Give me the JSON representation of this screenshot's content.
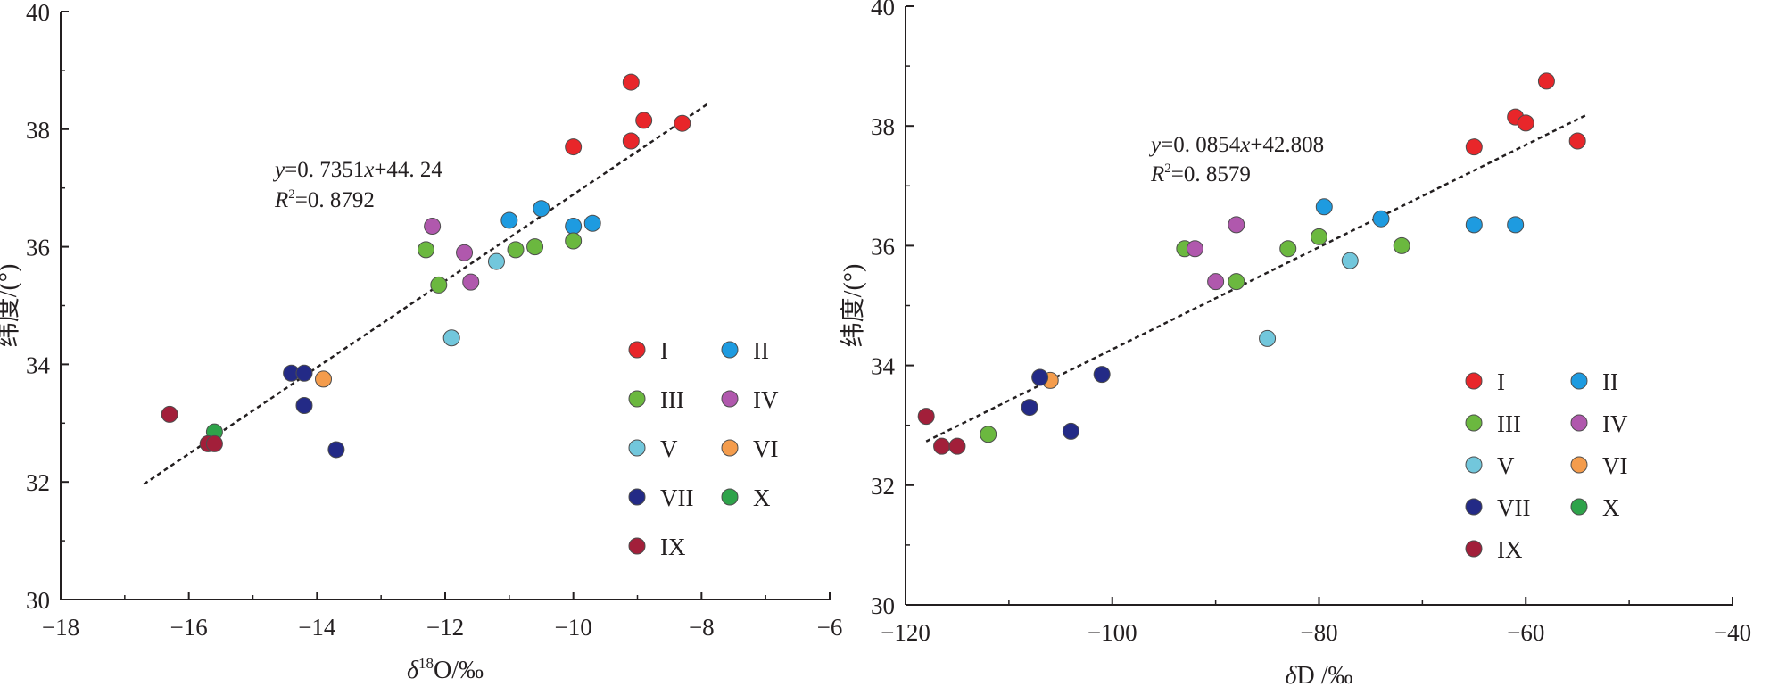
{
  "series_colors": {
    "I": "#e8262a",
    "II": "#1e9be0",
    "III": "#6bb83f",
    "IV": "#b058ad",
    "V": "#72c7dc",
    "VI": "#f49c4c",
    "VII": "#232a86",
    "X": "#2ea34a",
    "IX": "#a21f3a"
  },
  "chart_data": [
    {
      "type": "scatter",
      "xlabel_prefix": "δ",
      "xlabel_sup": "18",
      "xlabel_suffix": "O/‰",
      "ylabel": "纬度/(°)",
      "xlim": [
        -18,
        -6
      ],
      "ylim": [
        30,
        40
      ],
      "x_ticks": [
        "−18",
        "−16",
        "−14",
        "−12",
        "−10",
        "−8",
        "−6"
      ],
      "y_ticks": [
        "30",
        "32",
        "34",
        "36",
        "38",
        "40"
      ],
      "trendline": {
        "eq_y": "y",
        "eq_mid": "=0. 7351",
        "eq_x": "x",
        "eq_tail": "+44. 24",
        "r2_r": "R",
        "r2_sup": "2",
        "r2_tail": "=0. 8792",
        "slope": 0.7351,
        "intercept": 44.24,
        "x_range": [
          -16.7,
          -7.9
        ]
      },
      "legend": [
        "I",
        "II",
        "III",
        "IV",
        "V",
        "VI",
        "VII",
        "X",
        "IX"
      ],
      "series": [
        {
          "name": "I",
          "points": [
            [
              -9.1,
              38.8
            ],
            [
              -8.9,
              38.15
            ],
            [
              -9.1,
              37.8
            ],
            [
              -8.3,
              38.1
            ],
            [
              -10.0,
              37.7
            ]
          ]
        },
        {
          "name": "II",
          "points": [
            [
              -11.0,
              36.45
            ],
            [
              -10.5,
              36.65
            ],
            [
              -10.0,
              36.35
            ],
            [
              -9.7,
              36.4
            ]
          ]
        },
        {
          "name": "III",
          "points": [
            [
              -12.3,
              35.95
            ],
            [
              -12.1,
              35.35
            ],
            [
              -10.9,
              35.95
            ],
            [
              -10.6,
              36.0
            ],
            [
              -10.0,
              36.1
            ]
          ]
        },
        {
          "name": "IV",
          "points": [
            [
              -12.2,
              36.35
            ],
            [
              -11.7,
              35.9
            ],
            [
              -11.6,
              35.4
            ]
          ]
        },
        {
          "name": "V",
          "points": [
            [
              -11.9,
              34.45
            ],
            [
              -11.2,
              35.75
            ]
          ]
        },
        {
          "name": "VI",
          "points": [
            [
              -13.9,
              33.75
            ]
          ]
        },
        {
          "name": "VII",
          "points": [
            [
              -14.4,
              33.85
            ],
            [
              -14.2,
              33.85
            ],
            [
              -14.2,
              33.3
            ],
            [
              -13.7,
              32.55
            ]
          ]
        },
        {
          "name": "X",
          "points": [
            [
              -15.6,
              32.85
            ]
          ]
        },
        {
          "name": "IX",
          "points": [
            [
              -16.3,
              33.15
            ],
            [
              -15.7,
              32.65
            ],
            [
              -15.6,
              32.65
            ]
          ]
        }
      ]
    },
    {
      "type": "scatter",
      "xlabel_prefix": "δ",
      "xlabel_sup": "",
      "xlabel_suffix": "D /‰",
      "ylabel": "纬度/(°)",
      "xlim": [
        -120,
        -40
      ],
      "ylim": [
        30,
        40
      ],
      "x_ticks": [
        "−120",
        "−100",
        "−80",
        "−60",
        "−40"
      ],
      "y_ticks": [
        "30",
        "32",
        "34",
        "36",
        "38",
        "40"
      ],
      "trendline": {
        "eq_y": "y",
        "eq_mid": "=0. 0854",
        "eq_x": "x",
        "eq_tail": "+42.808",
        "r2_r": "R",
        "r2_sup": "2",
        "r2_tail": "=0. 8579",
        "slope": 0.0854,
        "intercept": 42.808,
        "x_range": [
          -118,
          -54
        ]
      },
      "legend": [
        "I",
        "II",
        "III",
        "IV",
        "V",
        "VI",
        "VII",
        "X",
        "IX"
      ],
      "series": [
        {
          "name": "I",
          "points": [
            [
              -58,
              38.75
            ],
            [
              -61,
              38.15
            ],
            [
              -60,
              38.05
            ],
            [
              -55,
              37.75
            ],
            [
              -65,
              37.65
            ]
          ]
        },
        {
          "name": "II",
          "points": [
            [
              -79.5,
              36.65
            ],
            [
              -74,
              36.45
            ],
            [
              -65,
              36.35
            ],
            [
              -61,
              36.35
            ]
          ]
        },
        {
          "name": "III",
          "points": [
            [
              -93,
              35.95
            ],
            [
              -88,
              35.4
            ],
            [
              -83,
              35.95
            ],
            [
              -80,
              36.15
            ],
            [
              -72,
              36.0
            ],
            [
              -112,
              32.85
            ]
          ]
        },
        {
          "name": "IV",
          "points": [
            [
              -92,
              35.95
            ],
            [
              -88,
              36.35
            ],
            [
              -90,
              35.4
            ]
          ]
        },
        {
          "name": "V",
          "points": [
            [
              -77,
              35.75
            ],
            [
              -85,
              34.45
            ]
          ]
        },
        {
          "name": "VI",
          "points": [
            [
              -106,
              33.75
            ]
          ]
        },
        {
          "name": "VII",
          "points": [
            [
              -107,
              33.8
            ],
            [
              -101,
              33.85
            ],
            [
              -108,
              33.3
            ],
            [
              -104,
              32.9
            ]
          ]
        },
        {
          "name": "X",
          "points": []
        },
        {
          "name": "IX",
          "points": [
            [
              -118,
              33.15
            ],
            [
              -116.5,
              32.65
            ],
            [
              -115,
              32.65
            ]
          ]
        }
      ]
    }
  ]
}
